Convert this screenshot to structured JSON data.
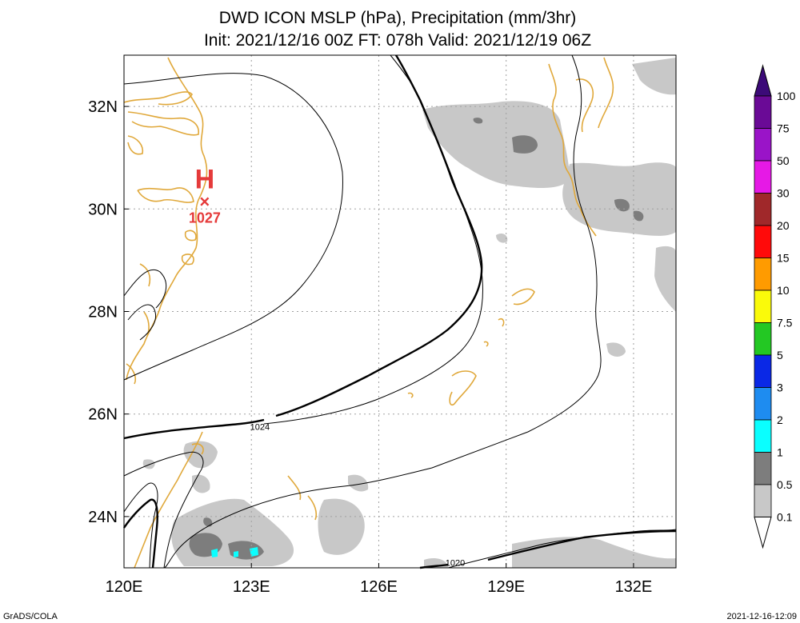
{
  "title": {
    "line1": "DWD ICON MSLP (hPa), Precipitation (mm/3hr)",
    "line2": "Init: 2021/12/16 00Z  FT: 078h  Valid: 2021/12/19 06Z"
  },
  "map": {
    "lon_range": [
      120,
      133
    ],
    "lat_range": [
      23,
      33
    ],
    "lon_ticks": [
      {
        "value": 120,
        "label": "120E"
      },
      {
        "value": 123,
        "label": "123E"
      },
      {
        "value": 126,
        "label": "126E"
      },
      {
        "value": 129,
        "label": "129E"
      },
      {
        "value": 132,
        "label": "132E"
      }
    ],
    "lat_ticks": [
      {
        "value": 24,
        "label": "24N"
      },
      {
        "value": 26,
        "label": "26N"
      },
      {
        "value": 28,
        "label": "28N"
      },
      {
        "value": 30,
        "label": "30N"
      },
      {
        "value": 32,
        "label": "32N"
      }
    ],
    "grid": true,
    "coastline_color": "#e0a83a",
    "isobar_color": "#000000",
    "isobar_labels": [
      {
        "text": "1024",
        "lon": 123.2,
        "lat": 25.75
      },
      {
        "text": "1020",
        "lon": 127.8,
        "lat": 23.1
      }
    ],
    "high_center": {
      "symbol": "H",
      "value": "1027",
      "lon": 121.9,
      "lat": 30.15,
      "color": "#e53a3a"
    },
    "precipitation_shading": "gray 0.1-1 mm/3hr over East China Sea, southern Japan, and near Taiwan; light cyan 1-2 near 122.5E 23.5N"
  },
  "colorbar": {
    "labels": [
      "100",
      "75",
      "50",
      "30",
      "20",
      "15",
      "10",
      "7.5",
      "5",
      "3",
      "2",
      "1",
      "0.5",
      "0.1"
    ],
    "colors": [
      "#6a0a96",
      "#9a14c8",
      "#e619e6",
      "#a0282a",
      "#ff0a0a",
      "#ff9b00",
      "#fafa0a",
      "#23c823",
      "#0a28e6",
      "#1e8cf0",
      "#0affff",
      "#7d7d7d",
      "#c8c8c8"
    ],
    "top_color": "#3c0a78"
  },
  "footer": {
    "left": "GrADS/COLA",
    "right": "2021-12-16-12:09"
  }
}
